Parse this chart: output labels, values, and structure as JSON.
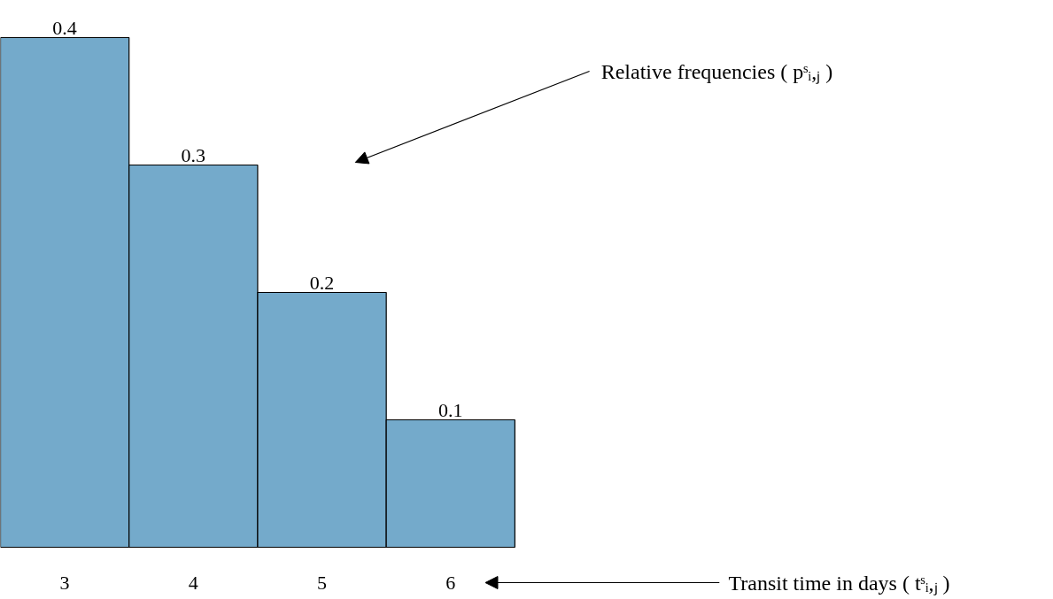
{
  "chart_data": {
    "type": "bar",
    "categories": [
      "3",
      "4",
      "5",
      "6"
    ],
    "values": [
      0.4,
      0.3,
      0.2,
      0.1
    ],
    "color": "#74aacb",
    "data_labels": true,
    "grid": false,
    "annotations": [
      "Relative frequencies ( pˢᵢ,ⱼ )",
      "Transit time in days ( tˢᵢ,ⱼ )"
    ]
  }
}
